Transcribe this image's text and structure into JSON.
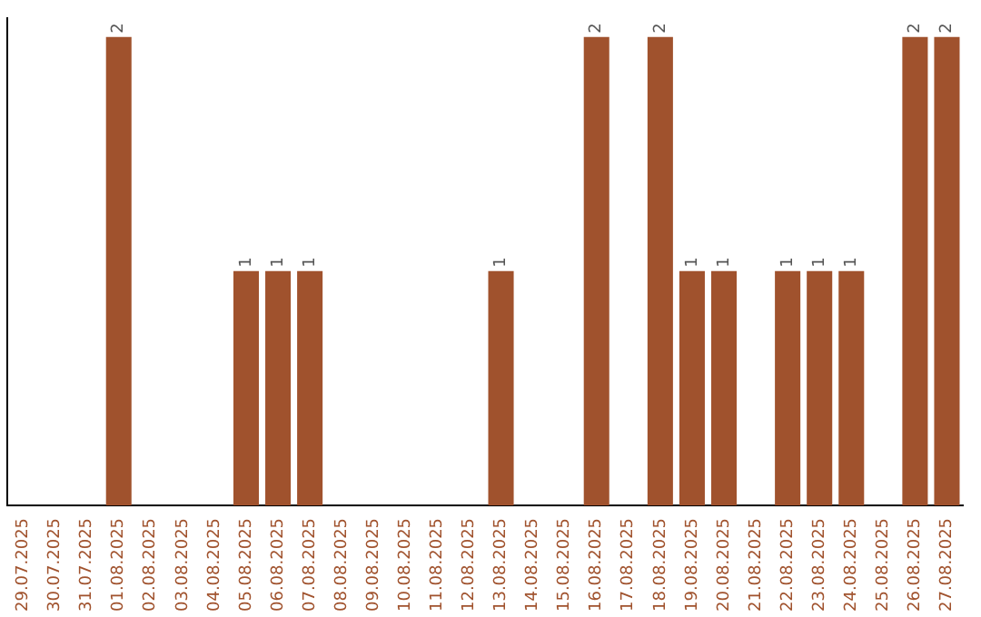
{
  "chart_data": {
    "type": "bar",
    "categories": [
      "29.07.2025",
      "30.07.2025",
      "31.07.2025",
      "01.08.2025",
      "02.08.2025",
      "03.08.2025",
      "04.08.2025",
      "05.08.2025",
      "06.08.2025",
      "07.08.2025",
      "08.08.2025",
      "09.08.2025",
      "10.08.2025",
      "11.08.2025",
      "12.08.2025",
      "13.08.2025",
      "14.08.2025",
      "15.08.2025",
      "16.08.2025",
      "17.08.2025",
      "18.08.2025",
      "19.08.2025",
      "20.08.2025",
      "21.08.2025",
      "22.08.2025",
      "23.08.2025",
      "24.08.2025",
      "25.08.2025",
      "26.08.2025",
      "27.08.2025"
    ],
    "values": [
      0,
      0,
      0,
      2,
      0,
      0,
      0,
      1,
      1,
      1,
      0,
      0,
      0,
      0,
      0,
      1,
      0,
      0,
      2,
      0,
      2,
      1,
      1,
      0,
      1,
      1,
      1,
      0,
      2,
      2
    ],
    "value_labels": [
      null,
      null,
      null,
      "2",
      null,
      null,
      null,
      "1",
      "1",
      "1",
      null,
      null,
      null,
      null,
      null,
      "1",
      null,
      null,
      "2",
      null,
      "2",
      "1",
      "1",
      null,
      "1",
      "1",
      "1",
      null,
      "2",
      "2"
    ],
    "color": "#a0522d",
    "ylim": [
      0,
      2.08
    ],
    "tick_labels": "x",
    "grid": false,
    "legend": false
  }
}
